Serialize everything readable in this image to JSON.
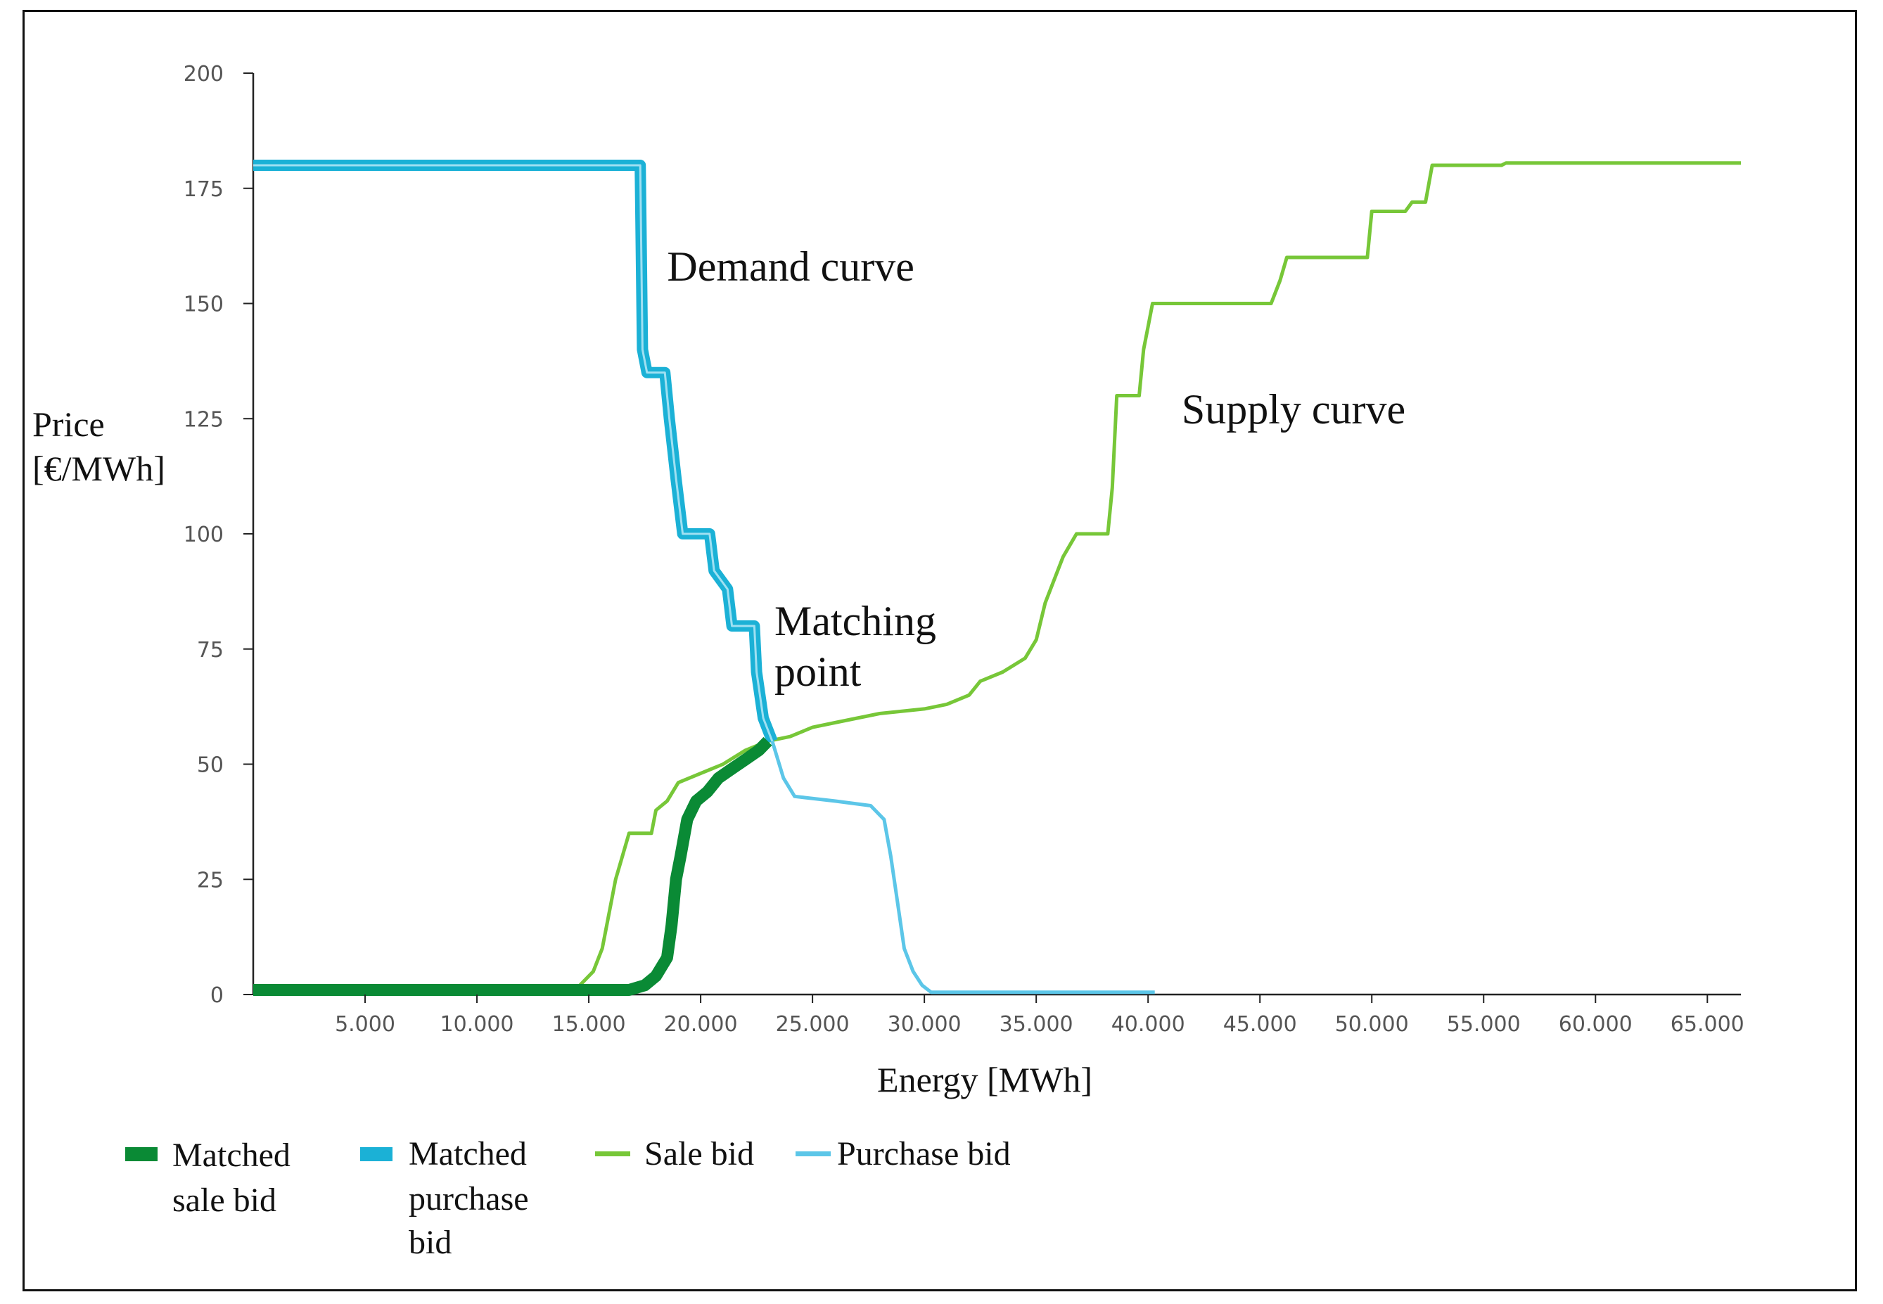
{
  "chart_data": {
    "type": "line",
    "xlabel": "Energy [MWh]",
    "ylabel_lines": [
      "Price",
      "[€/MWh]"
    ],
    "xlim": [
      0,
      66500
    ],
    "ylim": [
      0,
      200
    ],
    "x_ticks": [
      5000,
      10000,
      15000,
      20000,
      25000,
      30000,
      35000,
      40000,
      45000,
      50000,
      55000,
      60000,
      65000
    ],
    "x_tick_labels": [
      "5.000",
      "10.000",
      "15.000",
      "20.000",
      "25.000",
      "30.000",
      "35.000",
      "40.000",
      "45.000",
      "50.000",
      "55.000",
      "60.000",
      "65.000"
    ],
    "y_ticks": [
      0,
      25,
      50,
      75,
      100,
      125,
      150,
      175,
      200
    ],
    "y_tick_labels": [
      "0",
      "25",
      "50",
      "75",
      "100",
      "125",
      "150",
      "175",
      "200"
    ],
    "colors": {
      "matched_sale": "#0a8a35",
      "matched_purchase": "#1bb1d6",
      "sale": "#77c738",
      "purchase": "#5cc6e8",
      "axis": "#222222"
    },
    "annotations": [
      {
        "id": "demand",
        "text": "Demand curve",
        "x": 18500,
        "y": 155
      },
      {
        "id": "supply",
        "text": "Supply curve",
        "x": 41500,
        "y": 124
      },
      {
        "id": "matching1",
        "text": "Matching",
        "x": 23300,
        "y": 78
      },
      {
        "id": "matching2",
        "text": "point",
        "x": 23300,
        "y": 67
      }
    ],
    "series": [
      {
        "name": "Sale bid",
        "key": "sale",
        "values": [
          [
            0,
            1
          ],
          [
            14200,
            1
          ],
          [
            14600,
            2
          ],
          [
            15200,
            5
          ],
          [
            15600,
            10
          ],
          [
            16000,
            20
          ],
          [
            16200,
            25
          ],
          [
            16500,
            30
          ],
          [
            16800,
            35
          ],
          [
            17800,
            35
          ],
          [
            18000,
            40
          ],
          [
            18500,
            42
          ],
          [
            19000,
            46
          ],
          [
            20000,
            48
          ],
          [
            21000,
            50
          ],
          [
            22000,
            53
          ],
          [
            23000,
            55
          ],
          [
            24000,
            56
          ],
          [
            25000,
            58
          ],
          [
            26000,
            59
          ],
          [
            27000,
            60
          ],
          [
            28000,
            61
          ],
          [
            30000,
            62
          ],
          [
            31000,
            63
          ],
          [
            32000,
            65
          ],
          [
            32500,
            68
          ],
          [
            33500,
            70
          ],
          [
            34500,
            73
          ],
          [
            35000,
            77
          ],
          [
            35400,
            85
          ],
          [
            35800,
            90
          ],
          [
            36200,
            95
          ],
          [
            36800,
            100
          ],
          [
            38200,
            100
          ],
          [
            38400,
            110
          ],
          [
            38600,
            130
          ],
          [
            39600,
            130
          ],
          [
            39800,
            140
          ],
          [
            40000,
            145
          ],
          [
            40200,
            150
          ],
          [
            45500,
            150
          ],
          [
            45900,
            155
          ],
          [
            46200,
            160
          ],
          [
            49800,
            160
          ],
          [
            50000,
            170
          ],
          [
            51500,
            170
          ],
          [
            51800,
            172
          ],
          [
            52400,
            172
          ],
          [
            52700,
            180
          ],
          [
            55800,
            180
          ],
          [
            56000,
            180.5
          ],
          [
            66500,
            180.5
          ]
        ]
      },
      {
        "name": "Purchase bid",
        "key": "purchase",
        "values": [
          [
            0,
            180
          ],
          [
            17300,
            180
          ],
          [
            17400,
            140
          ],
          [
            17600,
            135
          ],
          [
            18400,
            135
          ],
          [
            18600,
            125
          ],
          [
            18900,
            112
          ],
          [
            19200,
            100
          ],
          [
            20400,
            100
          ],
          [
            20600,
            92
          ],
          [
            21200,
            88
          ],
          [
            21400,
            80
          ],
          [
            22400,
            80
          ],
          [
            22500,
            70
          ],
          [
            22800,
            60
          ],
          [
            23200,
            55
          ],
          [
            23700,
            47
          ],
          [
            24200,
            43
          ],
          [
            26000,
            42
          ],
          [
            27600,
            41
          ],
          [
            28200,
            38
          ],
          [
            28500,
            30
          ],
          [
            28800,
            20
          ],
          [
            29100,
            10
          ],
          [
            29500,
            5
          ],
          [
            29900,
            2
          ],
          [
            30300,
            0.5
          ],
          [
            40300,
            0.5
          ]
        ]
      },
      {
        "name": "Matched purchase bid",
        "key": "matched_purchase",
        "values": [
          [
            0,
            180
          ],
          [
            17300,
            180
          ],
          [
            17400,
            140
          ],
          [
            17600,
            135
          ],
          [
            18400,
            135
          ],
          [
            18600,
            125
          ],
          [
            18900,
            112
          ],
          [
            19200,
            100
          ],
          [
            20400,
            100
          ],
          [
            20600,
            92
          ],
          [
            21200,
            88
          ],
          [
            21400,
            80
          ],
          [
            22400,
            80
          ],
          [
            22500,
            70
          ],
          [
            22800,
            60
          ],
          [
            23200,
            55
          ]
        ]
      },
      {
        "name": "Matched sale bid",
        "key": "matched_sale",
        "values": [
          [
            0,
            1
          ],
          [
            16800,
            1
          ],
          [
            17500,
            2
          ],
          [
            18000,
            4
          ],
          [
            18500,
            8
          ],
          [
            18700,
            15
          ],
          [
            18900,
            25
          ],
          [
            19100,
            30
          ],
          [
            19400,
            38
          ],
          [
            19800,
            42
          ],
          [
            20300,
            44
          ],
          [
            20800,
            47
          ],
          [
            21400,
            49
          ],
          [
            22000,
            51
          ],
          [
            22600,
            53
          ],
          [
            23000,
            55
          ]
        ]
      }
    ],
    "legend": [
      {
        "key": "matched_sale",
        "lines": [
          "Matched",
          "sale bid"
        ]
      },
      {
        "key": "matched_purchase",
        "lines": [
          "Matched",
          "purchase",
          "bid"
        ]
      },
      {
        "key": "sale",
        "lines": [
          "Sale bid"
        ]
      },
      {
        "key": "purchase",
        "lines": [
          "Purchase bid"
        ]
      }
    ]
  }
}
